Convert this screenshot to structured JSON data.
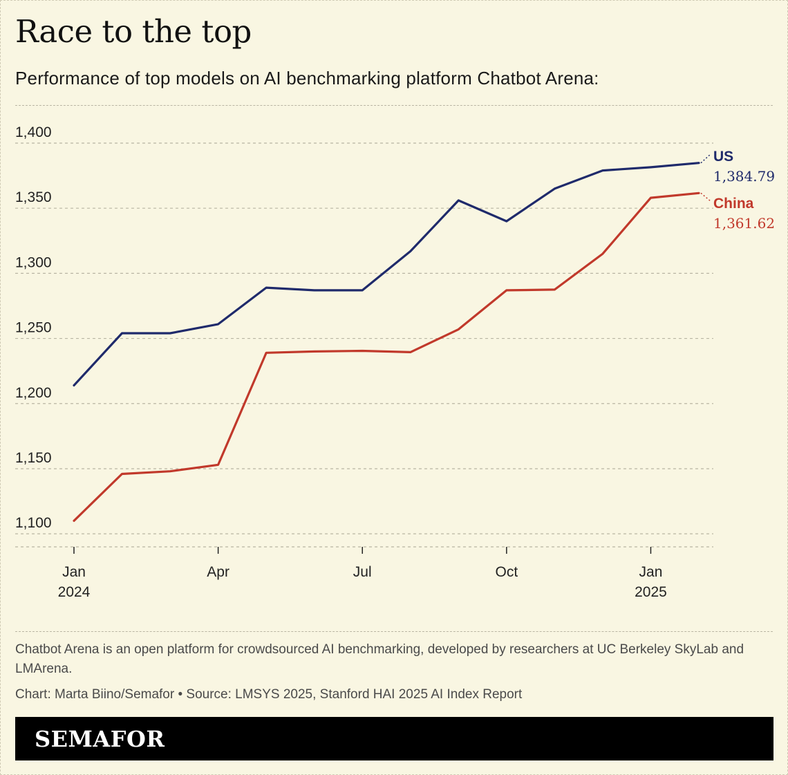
{
  "header": {
    "title": "Race to the top",
    "subtitle": "Performance of top models on AI benchmarking platform Chatbot Arena:"
  },
  "chart_data": {
    "type": "line",
    "x": [
      "2024-01",
      "2024-02",
      "2024-03",
      "2024-04",
      "2024-05",
      "2024-06",
      "2024-07",
      "2024-08",
      "2024-09",
      "2024-10",
      "2024-11",
      "2024-12",
      "2025-01",
      "2025-02"
    ],
    "x_tick_labels": [
      {
        "x": "2024-01",
        "line1": "Jan",
        "line2": "2024"
      },
      {
        "x": "2024-04",
        "line1": "Apr",
        "line2": ""
      },
      {
        "x": "2024-07",
        "line1": "Jul",
        "line2": ""
      },
      {
        "x": "2024-10",
        "line1": "Oct",
        "line2": ""
      },
      {
        "x": "2025-01",
        "line1": "Jan",
        "line2": "2025"
      }
    ],
    "y_ticks": [
      {
        "value": 1100,
        "label": "1,100"
      },
      {
        "value": 1150,
        "label": "1,150"
      },
      {
        "value": 1200,
        "label": "1,200"
      },
      {
        "value": 1250,
        "label": "1,250"
      },
      {
        "value": 1300,
        "label": "1,300"
      },
      {
        "value": 1350,
        "label": "1,350"
      },
      {
        "value": 1400,
        "label": "1,400"
      }
    ],
    "ylim": [
      1090,
      1400
    ],
    "grid": true,
    "series": [
      {
        "name": "US",
        "color": "#1f2a6b",
        "end_label": "1,384.79",
        "values": [
          1214,
          1254,
          1254,
          1261,
          1289,
          1287,
          1287,
          1317,
          1356,
          1340,
          1365,
          1379,
          1381.5,
          1384.79
        ]
      },
      {
        "name": "China",
        "color": "#c1392b",
        "end_label": "1,361.62",
        "values": [
          1110,
          1146,
          1148,
          1153,
          1239,
          1240,
          1240.5,
          1239.5,
          1257,
          1287,
          1287.5,
          1315,
          1358,
          1361.62
        ]
      }
    ]
  },
  "footer": {
    "note": "Chatbot Arena is an open platform for crowdsourced AI benchmarking, developed by researchers at UC Berkeley SkyLab and LMArena.",
    "credit": "Chart: Marta Biino/Semafor • Source: LMSYS 2025, Stanford HAI 2025 AI Index Report",
    "brand": "SEMAFOR"
  }
}
